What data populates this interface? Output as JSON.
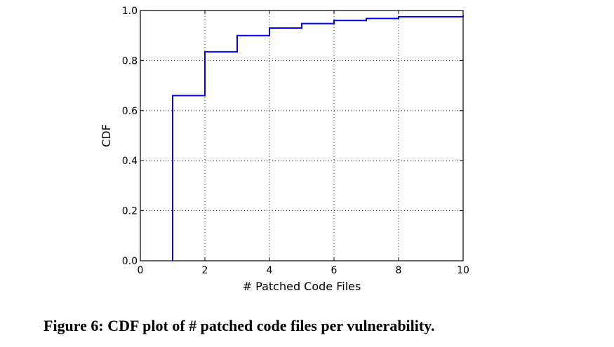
{
  "caption": "Figure 6: CDF plot of # patched code files per vulnerability.",
  "chart_data": {
    "type": "line",
    "step": true,
    "title": "",
    "xlabel": "# Patched Code Files",
    "ylabel": "CDF",
    "xlim": [
      0,
      10
    ],
    "ylim": [
      0.0,
      1.0
    ],
    "xticks": [
      0,
      2,
      4,
      6,
      8,
      10
    ],
    "xtick_labels": [
      "0",
      "2",
      "4",
      "6",
      "8",
      "10"
    ],
    "yticks": [
      0.0,
      0.2,
      0.4,
      0.6,
      0.8,
      1.0
    ],
    "ytick_labels": [
      "0.0",
      "0.2",
      "0.4",
      "0.6",
      "0.8",
      "1.0"
    ],
    "grid": true,
    "line_color": "#0000ff",
    "series": [
      {
        "x": [
          1,
          1,
          2,
          3,
          4,
          5,
          6,
          7,
          8,
          10
        ],
        "y": [
          0.0,
          0.66,
          0.835,
          0.9,
          0.93,
          0.948,
          0.96,
          0.968,
          0.975,
          0.98
        ]
      }
    ]
  }
}
